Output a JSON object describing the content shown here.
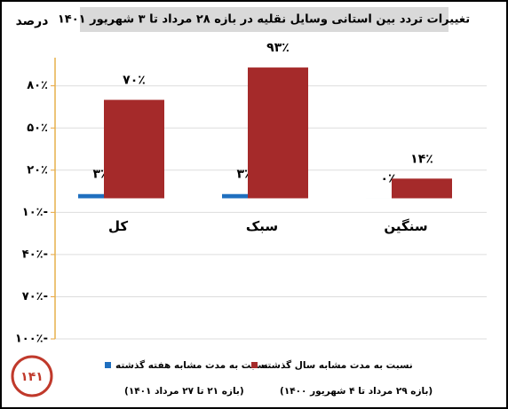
{
  "chart_data": {
    "type": "bar",
    "title": "تغییرات تردد بین استانی وسایل نقلیه در بازه ۲۸ مرداد تا ۳ شهریور ۱۴۰۱",
    "y_label": "درصد",
    "logo": "۱۴۱",
    "categories": [
      "کل",
      "سبک",
      "سنگین"
    ],
    "series": [
      {
        "name": "نسبت به مدت مشابه هفته گذشته",
        "period": "(بازه ۲۱ تا ۲۷ مرداد ۱۴۰۱)",
        "color": "#1f6fbf",
        "values": [
          3,
          3,
          0
        ],
        "value_labels": [
          "۳٪",
          "۳٪",
          "۰٪"
        ]
      },
      {
        "name": "نسبت به مدت مشابه سال گذشته",
        "period": "(بازه ۲۹ مرداد تا ۴ شهریور ۱۴۰۰)",
        "color": "#a52a2a",
        "values": [
          70,
          93,
          14
        ],
        "value_labels": [
          "۷۰٪",
          "۹۳٪",
          "۱۴٪"
        ]
      }
    ],
    "ylim": [
      -100,
      100
    ],
    "yticks": [
      {
        "value": 80,
        "label": "۸۰٪"
      },
      {
        "value": 50,
        "label": "۵۰٪"
      },
      {
        "value": 20,
        "label": "۲۰٪"
      },
      {
        "value": -10,
        "label": "۱۰٪-"
      },
      {
        "value": -40,
        "label": "۴۰٪-"
      },
      {
        "value": -70,
        "label": "۷۰٪-"
      },
      {
        "value": -100,
        "label": "۱۰۰٪-"
      }
    ],
    "grid": true
  }
}
